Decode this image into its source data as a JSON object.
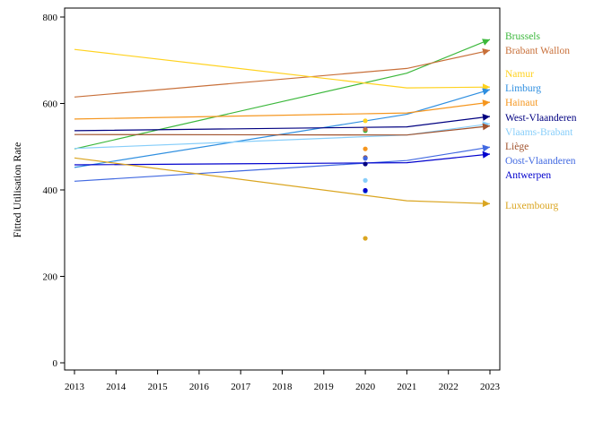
{
  "chart_data": {
    "type": "line",
    "title": "",
    "xlabel": "",
    "ylabel": "Fitted Utilisation Rate",
    "xlim": [
      2013,
      2023
    ],
    "ylim": [
      0,
      800
    ],
    "x_ticks": [
      2013,
      2014,
      2015,
      2016,
      2017,
      2018,
      2019,
      2020,
      2021,
      2022,
      2023
    ],
    "y_ticks": [
      0,
      200,
      400,
      600,
      800
    ],
    "grid": false,
    "legend": "right, labels at line ends",
    "series": [
      {
        "name": "Brussels",
        "color": "#3cb83c",
        "points": [
          [
            2013,
            495
          ],
          [
            2021,
            670
          ],
          [
            2023,
            748
          ]
        ],
        "marker": [
          2020,
          537
        ]
      },
      {
        "name": "Brabant Wallon",
        "color": "#c8703a",
        "points": [
          [
            2013,
            615
          ],
          [
            2021,
            681
          ],
          [
            2023,
            723
          ]
        ],
        "marker": [
          2020,
          540
        ]
      },
      {
        "name": "Namur",
        "color": "#ffd21f",
        "points": [
          [
            2013,
            725
          ],
          [
            2021,
            636
          ],
          [
            2023,
            638
          ]
        ],
        "marker": [
          2020,
          560
        ]
      },
      {
        "name": "Limburg",
        "color": "#2f8fe0",
        "points": [
          [
            2013,
            452
          ],
          [
            2021,
            575
          ],
          [
            2023,
            632
          ]
        ],
        "marker": [
          2020,
          397
        ]
      },
      {
        "name": "Hainaut",
        "color": "#f5961e",
        "points": [
          [
            2013,
            564
          ],
          [
            2021,
            578
          ],
          [
            2023,
            603
          ]
        ],
        "marker": [
          2020,
          495
        ]
      },
      {
        "name": "West-Vlaanderen",
        "color": "#000080",
        "points": [
          [
            2013,
            537
          ],
          [
            2021,
            546
          ],
          [
            2023,
            570
          ]
        ],
        "marker": [
          2020,
          460
        ]
      },
      {
        "name": "Vlaams-Brabant",
        "color": "#87cefa",
        "points": [
          [
            2013,
            496
          ],
          [
            2021,
            527
          ],
          [
            2023,
            553
          ]
        ],
        "marker": [
          2020,
          422
        ]
      },
      {
        "name": "Liège",
        "color": "#a0522d",
        "points": [
          [
            2013,
            528
          ],
          [
            2021,
            527
          ],
          [
            2023,
            548
          ]
        ],
        "marker": [
          2020,
          475
        ]
      },
      {
        "name": "Oost-Vlaanderen",
        "color": "#4169e1",
        "points": [
          [
            2013,
            420
          ],
          [
            2021,
            468
          ],
          [
            2023,
            499
          ]
        ],
        "marker": [
          2020,
          473
        ]
      },
      {
        "name": "Antwerpen",
        "color": "#0000cd",
        "points": [
          [
            2013,
            458
          ],
          [
            2021,
            463
          ],
          [
            2023,
            483
          ]
        ],
        "marker": [
          2020,
          399
        ]
      },
      {
        "name": "Luxembourg",
        "color": "#daa520",
        "points": [
          [
            2013,
            474
          ],
          [
            2021,
            375
          ],
          [
            2023,
            368
          ]
        ],
        "marker": [
          2020,
          288
        ]
      }
    ]
  }
}
